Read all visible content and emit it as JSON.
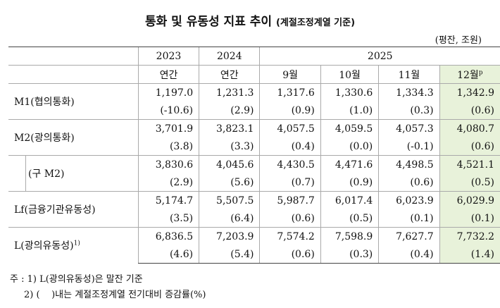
{
  "header": {
    "title": "통화 및 유동성 지표 추이",
    "title_note": "(계절조정계열 기준)",
    "unit": "(평잔, 조원)"
  },
  "table": {
    "years": [
      "2023",
      "2024",
      "2025"
    ],
    "periods": [
      "연간",
      "연간",
      "9월",
      "10월",
      "11월",
      "12월"
    ],
    "last_period_mark": "p",
    "rows": [
      {
        "label": "M1(협의통화)",
        "levels": [
          "1,197.0",
          "1,231.3",
          "1,317.6",
          "1,330.6",
          "1,334.3",
          "1,342.9"
        ],
        "changes": [
          "(-10.6)",
          "(2.9)",
          "(0.9)",
          "(1.0)",
          "(0.3)",
          "(0.6)"
        ]
      },
      {
        "label": "M2(광의통화)",
        "levels": [
          "3,701.9",
          "3,823.1",
          "4,057.5",
          "4,059.5",
          "4,057.3",
          "4,080.7"
        ],
        "changes": [
          "(3.8)",
          "(3.3)",
          "(0.4)",
          "(0.0)",
          "(-0.1)",
          "(0.6)"
        ]
      },
      {
        "label": "(구 M2)",
        "levels": [
          "3,830.6",
          "4,045.6",
          "4,430.5",
          "4,471.6",
          "4,498.5",
          "4,521.1"
        ],
        "changes": [
          "(2.9)",
          "(5.6)",
          "(0.7)",
          "(0.9)",
          "(0.6)",
          "(0.5)"
        ]
      },
      {
        "label": "Lf(금융기관유동성)",
        "levels": [
          "5,174.7",
          "5,507.5",
          "5,987.7",
          "6,017.4",
          "6,023.9",
          "6,029.9"
        ],
        "changes": [
          "(3.5)",
          "(6.4)",
          "(0.6)",
          "(0.5)",
          "(0.1)",
          "(0.1)"
        ]
      },
      {
        "label": "L(광의유동성)",
        "label_mark": "1)",
        "levels": [
          "6,836.5",
          "7,203.9",
          "7,574.2",
          "7,598.9",
          "7,627.7",
          "7,732.2"
        ],
        "changes": [
          "(4.6)",
          "(5.4)",
          "(0.6)",
          "(0.3)",
          "(0.4)",
          "(1.4)"
        ]
      }
    ]
  },
  "notes": [
    "주 : 1) L(광의유동성)은 말잔 기준",
    "2) (    )내는 계절조정계열 전기대비 증감률(%)"
  ]
}
